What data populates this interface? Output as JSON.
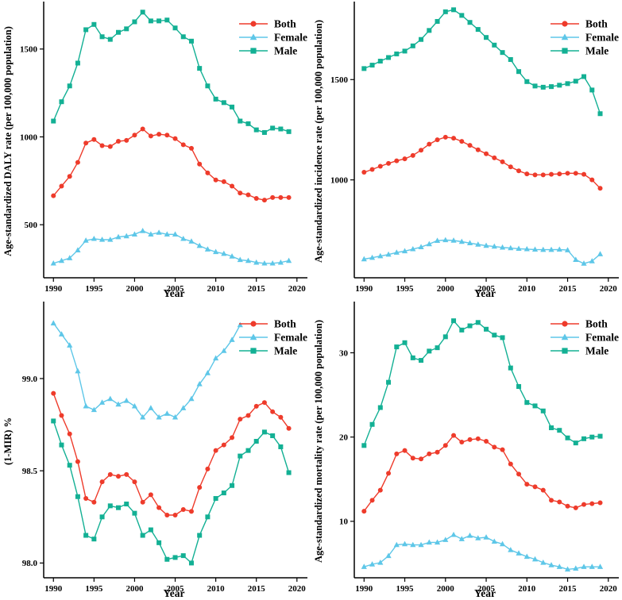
{
  "page": {
    "background": "#ffffff"
  },
  "colors": {
    "both": "#EE3B2B",
    "female": "#5EC7E8",
    "male": "#13B094",
    "axis": "#000000"
  },
  "axes": {
    "xlabel": "Year",
    "years": [
      1990,
      1991,
      1992,
      1993,
      1994,
      1995,
      1996,
      1997,
      1998,
      1999,
      2000,
      2001,
      2002,
      2003,
      2004,
      2005,
      2006,
      2007,
      2008,
      2009,
      2010,
      2011,
      2012,
      2013,
      2014,
      2015,
      2016,
      2017,
      2018,
      2019
    ],
    "xticks": [
      1990,
      1995,
      2000,
      2005,
      2010,
      2015,
      2020
    ],
    "xtick_labels": [
      "1990",
      "1995",
      "2000",
      "2005",
      "2010",
      "2015",
      "2020"
    ],
    "xlim": [
      1988.8,
      2020.9
    ],
    "grid": false
  },
  "legend": {
    "position": "top-right",
    "items": [
      {
        "label": "Both",
        "marker": "circle",
        "color_key": "both"
      },
      {
        "label": "Female",
        "marker": "triangle",
        "color_key": "female"
      },
      {
        "label": "Male",
        "marker": "square",
        "color_key": "male"
      }
    ]
  },
  "chart_data": [
    {
      "id": "daly-rate",
      "type": "line",
      "title": "",
      "xlabel": "Year",
      "ylabel": "Age-standardized DALY rate (per 100,000 population)",
      "yticks": [
        500,
        1000,
        1500
      ],
      "ytick_labels": [
        "500",
        "1000",
        "1500"
      ],
      "ylim": [
        198,
        1752
      ],
      "grid": false,
      "legend_position": "top-right",
      "series": [
        {
          "name": "Both",
          "marker": "circle",
          "color_key": "both",
          "values": [
            665,
            720,
            775,
            855,
            965,
            985,
            950,
            945,
            975,
            980,
            1010,
            1045,
            1005,
            1015,
            1010,
            990,
            955,
            935,
            845,
            795,
            755,
            745,
            720,
            680,
            670,
            650,
            640,
            655,
            655,
            655
          ]
        },
        {
          "name": "Female",
          "marker": "triangle",
          "color_key": "female",
          "values": [
            280,
            295,
            310,
            355,
            410,
            420,
            415,
            415,
            430,
            435,
            445,
            465,
            445,
            455,
            445,
            445,
            420,
            405,
            380,
            360,
            345,
            335,
            320,
            300,
            295,
            285,
            280,
            280,
            285,
            295
          ]
        },
        {
          "name": "Male",
          "marker": "square",
          "color_key": "male",
          "values": [
            1090,
            1200,
            1290,
            1420,
            1610,
            1640,
            1570,
            1555,
            1595,
            1615,
            1655,
            1710,
            1660,
            1660,
            1665,
            1620,
            1570,
            1545,
            1390,
            1290,
            1215,
            1195,
            1170,
            1090,
            1075,
            1040,
            1025,
            1050,
            1045,
            1030
          ]
        }
      ]
    },
    {
      "id": "incidence-rate",
      "type": "line",
      "title": "",
      "xlabel": "Year",
      "ylabel": "Age-standardized incidence rate (per 100,000 population)",
      "yticks": [
        1000,
        1500
      ],
      "ytick_labels": [
        "1000",
        "1500"
      ],
      "ylim": [
        512,
        1873
      ],
      "grid": false,
      "legend_position": "top-right",
      "series": [
        {
          "name": "Both",
          "marker": "circle",
          "color_key": "both",
          "values": [
            1038,
            1052,
            1068,
            1082,
            1095,
            1105,
            1122,
            1148,
            1178,
            1200,
            1213,
            1208,
            1192,
            1172,
            1150,
            1130,
            1110,
            1090,
            1065,
            1045,
            1030,
            1025,
            1025,
            1028,
            1030,
            1033,
            1033,
            1028,
            1000,
            958
          ]
        },
        {
          "name": "Female",
          "marker": "triangle",
          "color_key": "female",
          "values": [
            605,
            612,
            620,
            628,
            638,
            645,
            655,
            665,
            680,
            697,
            700,
            698,
            692,
            685,
            678,
            672,
            668,
            663,
            660,
            657,
            655,
            653,
            652,
            652,
            653,
            650,
            602,
            583,
            595,
            630
          ]
        },
        {
          "name": "Male",
          "marker": "square",
          "color_key": "male",
          "values": [
            1555,
            1572,
            1592,
            1610,
            1628,
            1642,
            1668,
            1700,
            1745,
            1790,
            1838,
            1848,
            1820,
            1785,
            1750,
            1710,
            1672,
            1635,
            1600,
            1540,
            1490,
            1468,
            1462,
            1465,
            1472,
            1480,
            1492,
            1515,
            1448,
            1330
          ]
        }
      ]
    },
    {
      "id": "one-minus-mir",
      "type": "line",
      "title": "",
      "xlabel": "Year",
      "ylabel": "(1-MIR) %",
      "yticks": [
        98.0,
        98.5,
        99.0
      ],
      "ytick_labels": [
        "98.0",
        "98.5",
        "99.0"
      ],
      "ylim": [
        97.92,
        99.4
      ],
      "grid": false,
      "legend_position": "top-right",
      "series": [
        {
          "name": "Both",
          "marker": "circle",
          "color_key": "both",
          "values": [
            98.92,
            98.8,
            98.7,
            98.55,
            98.35,
            98.33,
            98.44,
            98.48,
            98.47,
            98.48,
            98.44,
            98.33,
            98.37,
            98.3,
            98.26,
            98.26,
            98.29,
            98.28,
            98.41,
            98.51,
            98.61,
            98.64,
            98.68,
            98.78,
            98.8,
            98.85,
            98.87,
            98.82,
            98.79,
            98.73
          ]
        },
        {
          "name": "Female",
          "marker": "triangle",
          "color_key": "female",
          "values": [
            99.3,
            99.24,
            99.18,
            99.04,
            98.85,
            98.83,
            98.87,
            98.89,
            98.86,
            98.88,
            98.85,
            98.79,
            98.84,
            98.79,
            98.81,
            98.79,
            98.84,
            98.89,
            98.97,
            99.03,
            99.11,
            99.15,
            99.21,
            99.29,
            null,
            null,
            null,
            null,
            null,
            null
          ]
        },
        {
          "name": "Male",
          "marker": "square",
          "color_key": "male",
          "values": [
            98.77,
            98.64,
            98.53,
            98.36,
            98.15,
            98.13,
            98.25,
            98.31,
            98.3,
            98.32,
            98.27,
            98.15,
            98.18,
            98.11,
            98.02,
            98.03,
            98.04,
            98.0,
            98.15,
            98.25,
            98.35,
            98.38,
            98.42,
            98.58,
            98.61,
            98.66,
            98.71,
            98.69,
            98.63,
            98.49
          ]
        }
      ]
    },
    {
      "id": "mortality-rate",
      "type": "line",
      "title": "",
      "xlabel": "Year",
      "ylabel": "Age-standardized mortality rate (per 100,000 population)",
      "yticks": [
        10,
        20,
        30
      ],
      "ytick_labels": [
        "10",
        "20",
        "30"
      ],
      "ylim": [
        3.3,
        35.7
      ],
      "grid": false,
      "legend_position": "top-right",
      "series": [
        {
          "name": "Both",
          "marker": "circle",
          "color_key": "both",
          "values": [
            11.2,
            12.5,
            13.7,
            15.7,
            18.0,
            18.4,
            17.5,
            17.4,
            18.0,
            18.2,
            19.0,
            20.2,
            19.4,
            19.7,
            19.8,
            19.5,
            18.8,
            18.5,
            16.8,
            15.6,
            14.4,
            14.1,
            13.7,
            12.5,
            12.3,
            11.8,
            11.6,
            12.0,
            12.1,
            12.2
          ]
        },
        {
          "name": "Female",
          "marker": "triangle",
          "color_key": "female",
          "values": [
            4.6,
            4.9,
            5.1,
            5.9,
            7.2,
            7.3,
            7.2,
            7.2,
            7.5,
            7.5,
            7.8,
            8.4,
            7.9,
            8.3,
            8.0,
            8.1,
            7.6,
            7.3,
            6.6,
            6.2,
            5.8,
            5.5,
            5.1,
            4.8,
            4.6,
            4.3,
            4.4,
            4.6,
            4.6,
            4.6
          ]
        },
        {
          "name": "Male",
          "marker": "square",
          "color_key": "male",
          "values": [
            19.0,
            21.5,
            23.5,
            26.5,
            30.7,
            31.2,
            29.4,
            29.1,
            30.2,
            30.6,
            31.9,
            33.8,
            32.7,
            33.2,
            33.6,
            32.8,
            32.1,
            31.8,
            28.2,
            26.0,
            24.1,
            23.7,
            23.1,
            21.1,
            20.8,
            19.9,
            19.3,
            19.8,
            20.0,
            20.1
          ]
        }
      ]
    }
  ]
}
